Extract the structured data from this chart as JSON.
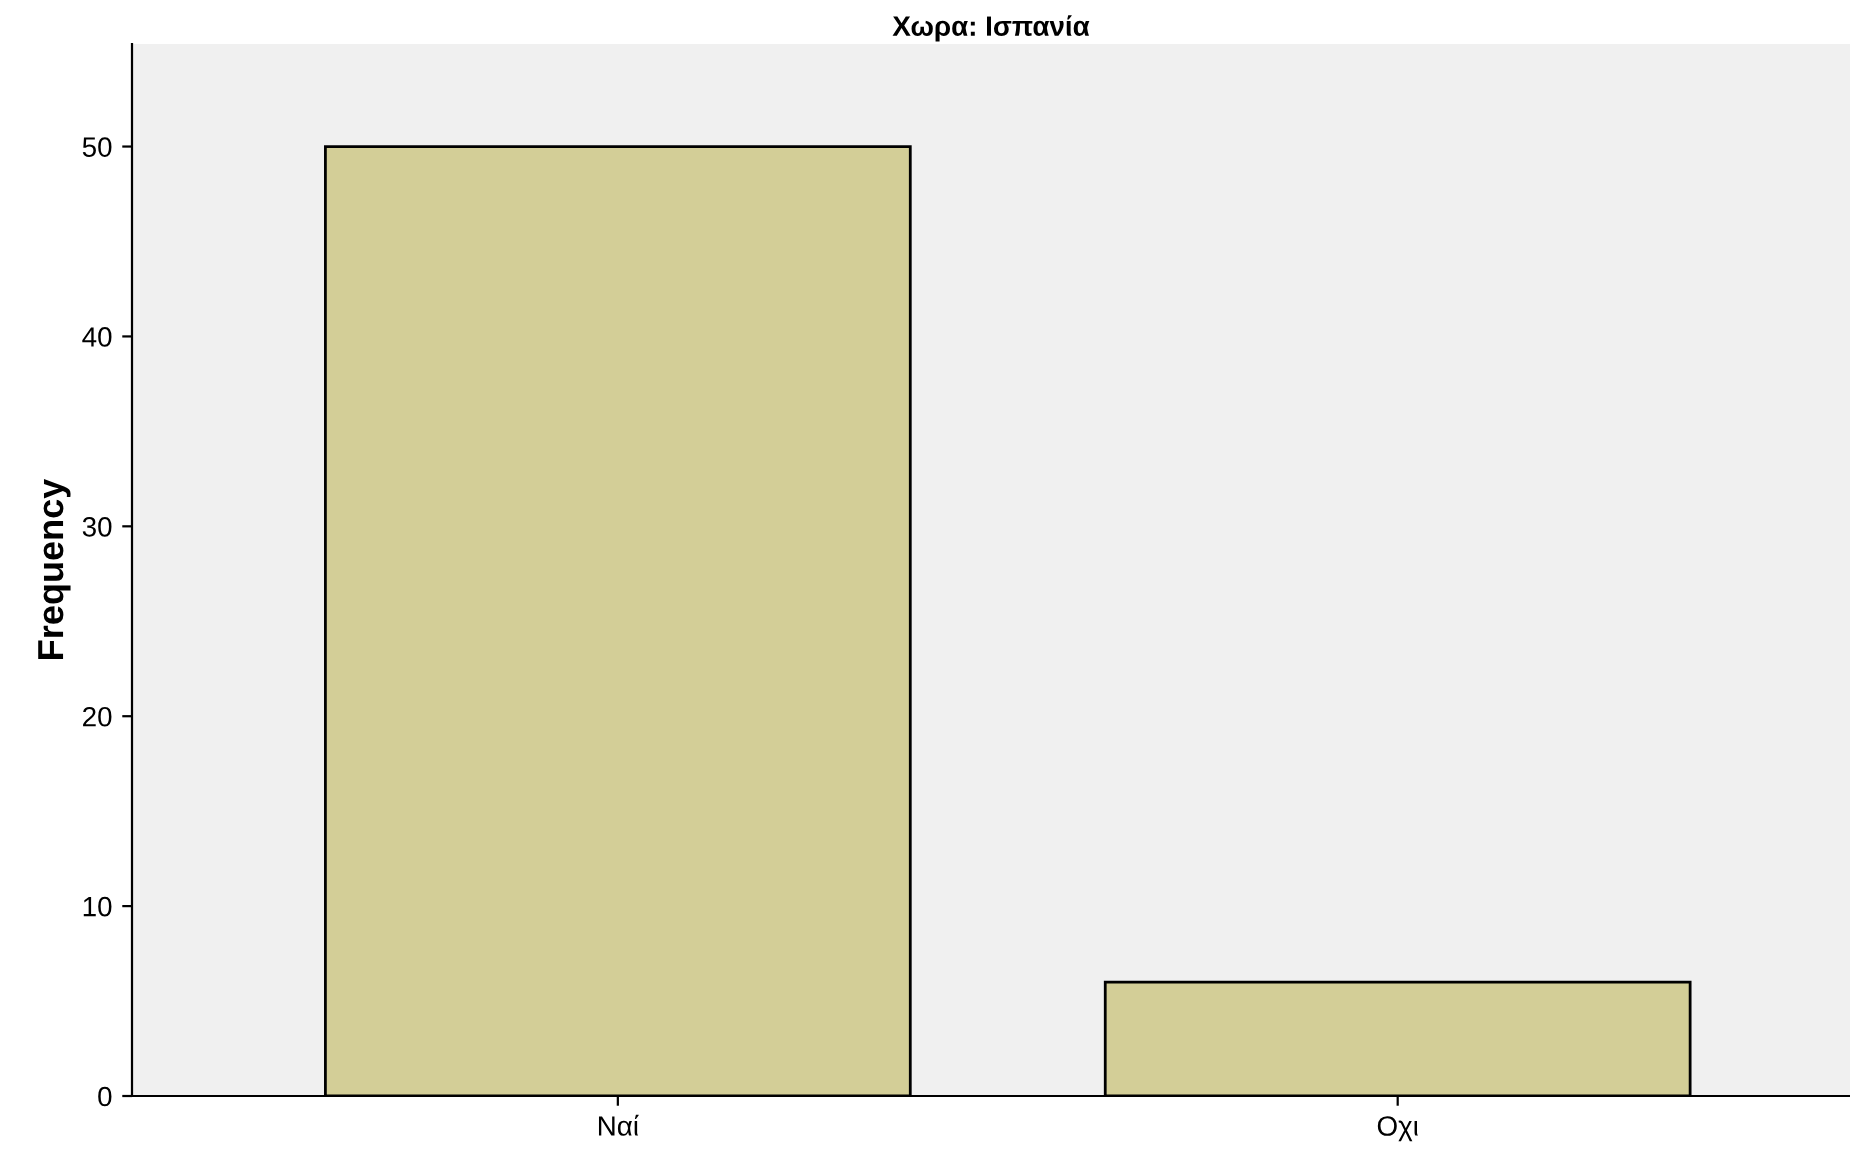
{
  "chart_data": {
    "type": "bar",
    "title": "Χωρα: Ισπανία",
    "ylabel": "Frequency",
    "categories": [
      "Ναί",
      "Οχι"
    ],
    "values": [
      50,
      6
    ],
    "color": "#d3ce97",
    "ylim": [
      0,
      55.4
    ],
    "yticks": [
      0,
      10,
      20,
      30,
      40,
      50
    ],
    "grid": false,
    "legend": false
  }
}
